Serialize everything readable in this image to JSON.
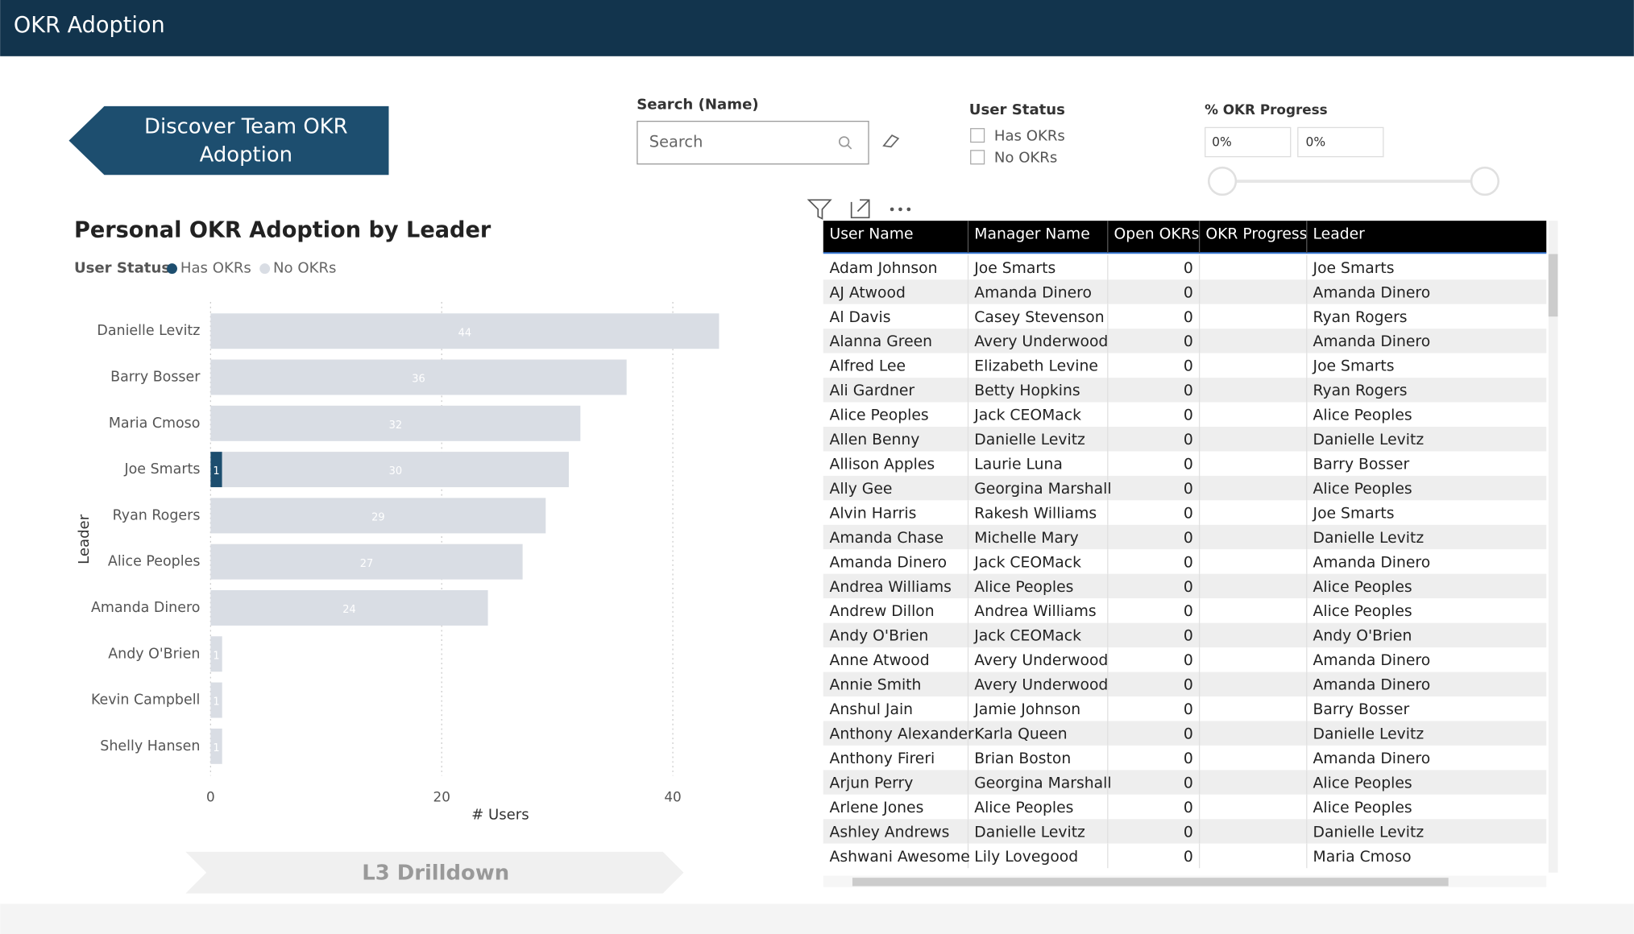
{
  "header": {
    "title": "OKR Adoption"
  },
  "nav": {
    "discover": "Discover Team OKR Adoption",
    "drilldown": "L3 Drilldown"
  },
  "search": {
    "label": "Search (Name)",
    "placeholder": "Search"
  },
  "status_filter": {
    "label": "User Status",
    "options": [
      "Has OKRs",
      "No OKRs"
    ]
  },
  "progress_filter": {
    "label": "% OKR Progress",
    "min": "0%",
    "max": "0%"
  },
  "chart_data": {
    "type": "stacked-barh",
    "title": "Personal OKR Adoption by Leader",
    "legend_title": "User Status",
    "x_label": "# Users",
    "y_label": "Leader",
    "categories": [
      "Danielle Levitz",
      "Barry Bosser",
      "Maria Cmoso",
      "Joe Smarts",
      "Ryan Rogers",
      "Alice Peoples",
      "Amanda Dinero",
      "Andy O'Brien",
      "Kevin Campbell",
      "Shelly Hansen"
    ],
    "series": [
      {
        "name": "Has OKRs",
        "color": "#1d4e6f",
        "values": [
          null,
          null,
          null,
          1,
          null,
          null,
          null,
          null,
          null,
          null
        ]
      },
      {
        "name": "No OKRs",
        "color": "#d9dde4",
        "values": [
          44,
          36,
          32,
          30,
          29,
          27,
          24,
          1,
          1,
          1
        ]
      }
    ],
    "xlim": [
      0,
      44
    ],
    "xticks": [
      0,
      20,
      40
    ],
    "grid": true
  },
  "table": {
    "columns": [
      "User Name",
      "Manager Name",
      "Open OKRs",
      "OKR Progress",
      "Leader"
    ],
    "rows": [
      [
        "Adam Johnson",
        "Joe Smarts",
        0,
        null,
        "Joe Smarts"
      ],
      [
        "AJ Atwood",
        "Amanda Dinero",
        0,
        null,
        "Amanda Dinero"
      ],
      [
        "Al Davis",
        "Casey Stevenson",
        0,
        null,
        "Ryan Rogers"
      ],
      [
        "Alanna Green",
        "Avery Underwood",
        0,
        null,
        "Amanda Dinero"
      ],
      [
        "Alfred Lee",
        "Elizabeth Levine",
        0,
        null,
        "Joe Smarts"
      ],
      [
        "Ali Gardner",
        "Betty Hopkins",
        0,
        null,
        "Ryan Rogers"
      ],
      [
        "Alice Peoples",
        "Jack CEOMack",
        0,
        null,
        "Alice Peoples"
      ],
      [
        "Allen Benny",
        "Danielle Levitz",
        0,
        null,
        "Danielle Levitz"
      ],
      [
        "Allison Apples",
        "Laurie Luna",
        0,
        null,
        "Barry Bosser"
      ],
      [
        "Ally Gee",
        "Georgina Marshall",
        0,
        null,
        "Alice Peoples"
      ],
      [
        "Alvin Harris",
        "Rakesh Williams",
        0,
        null,
        "Joe Smarts"
      ],
      [
        "Amanda Chase",
        "Michelle Mary",
        0,
        null,
        "Danielle Levitz"
      ],
      [
        "Amanda Dinero",
        "Jack CEOMack",
        0,
        null,
        "Amanda Dinero"
      ],
      [
        "Andrea Williams",
        "Alice Peoples",
        0,
        null,
        "Alice Peoples"
      ],
      [
        "Andrew Dillon",
        "Andrea Williams",
        0,
        null,
        "Alice Peoples"
      ],
      [
        "Andy O'Brien",
        "Jack CEOMack",
        0,
        null,
        "Andy O'Brien"
      ],
      [
        "Anne Atwood",
        "Avery Underwood",
        0,
        null,
        "Amanda Dinero"
      ],
      [
        "Annie Smith",
        "Avery Underwood",
        0,
        null,
        "Amanda Dinero"
      ],
      [
        "Anshul Jain",
        "Jamie Johnson",
        0,
        null,
        "Barry Bosser"
      ],
      [
        "Anthony Alexander",
        "Karla Queen",
        0,
        null,
        "Danielle Levitz"
      ],
      [
        "Anthony Fireri",
        "Brian Boston",
        0,
        null,
        "Amanda Dinero"
      ],
      [
        "Arjun Perry",
        "Georgina Marshall",
        0,
        null,
        "Alice Peoples"
      ],
      [
        "Arlene Jones",
        "Alice Peoples",
        0,
        null,
        "Alice Peoples"
      ],
      [
        "Ashley Andrews",
        "Danielle Levitz",
        0,
        null,
        "Danielle Levitz"
      ],
      [
        "Ashwani Awesome",
        "Lily Lovegood",
        0,
        null,
        "Maria Cmoso"
      ]
    ]
  }
}
